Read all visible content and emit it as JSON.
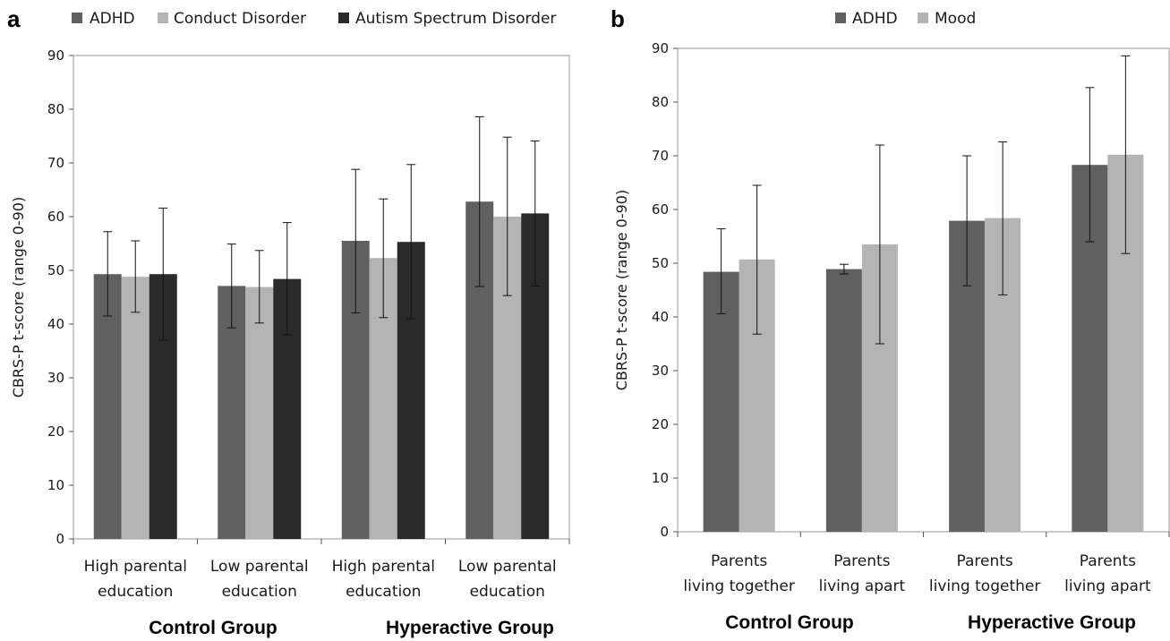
{
  "chart_data": [
    {
      "type": "bar",
      "panel_label": "a",
      "ylabel": "CBRS-P t-score (range 0-90)",
      "ylim": [
        0,
        90
      ],
      "yticks": [
        0,
        10,
        20,
        30,
        40,
        50,
        60,
        70,
        80,
        90
      ],
      "categories": [
        [
          "High parental",
          "education"
        ],
        [
          "Low parental",
          "education"
        ],
        [
          "High parental",
          "education"
        ],
        [
          "Low parental",
          "education"
        ]
      ],
      "groups": [
        "Control Group",
        "Hyperactive Group"
      ],
      "legend_position": "top",
      "grid": false,
      "series": [
        {
          "name": "ADHD",
          "color": "#606060",
          "values": [
            49.3,
            47.1,
            55.5,
            62.8
          ],
          "err_low": [
            41.5,
            39.3,
            42.1,
            47.0
          ],
          "err_high": [
            57.2,
            54.9,
            68.8,
            78.6
          ]
        },
        {
          "name": "Conduct Disorder",
          "color": "#b4b4b4",
          "values": [
            48.8,
            46.9,
            52.3,
            60.0
          ],
          "err_low": [
            42.2,
            40.2,
            41.2,
            45.3
          ],
          "err_high": [
            55.5,
            53.7,
            63.3,
            74.8
          ]
        },
        {
          "name": "Autism Spectrum Disorder",
          "color": "#2a2a2a",
          "values": [
            49.3,
            48.4,
            55.3,
            60.6
          ],
          "err_low": [
            37.0,
            38.0,
            41.0,
            47.1
          ],
          "err_high": [
            61.6,
            58.9,
            69.7,
            74.1
          ]
        }
      ]
    },
    {
      "type": "bar",
      "panel_label": "b",
      "ylabel": "CBRS-P t-score (range 0-90)",
      "ylim": [
        0,
        90
      ],
      "yticks": [
        0,
        10,
        20,
        30,
        40,
        50,
        60,
        70,
        80,
        90
      ],
      "categories": [
        [
          "Parents",
          "living together"
        ],
        [
          "Parents",
          "living apart"
        ],
        [
          "Parents",
          "living together"
        ],
        [
          "Parents",
          "living apart"
        ]
      ],
      "groups": [
        "Control Group",
        "Hyperactive Group"
      ],
      "legend_position": "top",
      "grid": false,
      "series": [
        {
          "name": "ADHD",
          "color": "#606060",
          "values": [
            48.4,
            48.9,
            57.9,
            68.3
          ],
          "err_low": [
            40.6,
            48.0,
            45.8,
            54.0
          ],
          "err_high": [
            56.4,
            49.8,
            70.0,
            82.7
          ]
        },
        {
          "name": "Mood",
          "color": "#b4b4b4",
          "values": [
            50.7,
            53.5,
            58.4,
            70.2
          ],
          "err_low": [
            36.8,
            35.0,
            44.1,
            51.8
          ],
          "err_high": [
            64.5,
            72.0,
            72.6,
            88.6
          ]
        }
      ]
    }
  ]
}
